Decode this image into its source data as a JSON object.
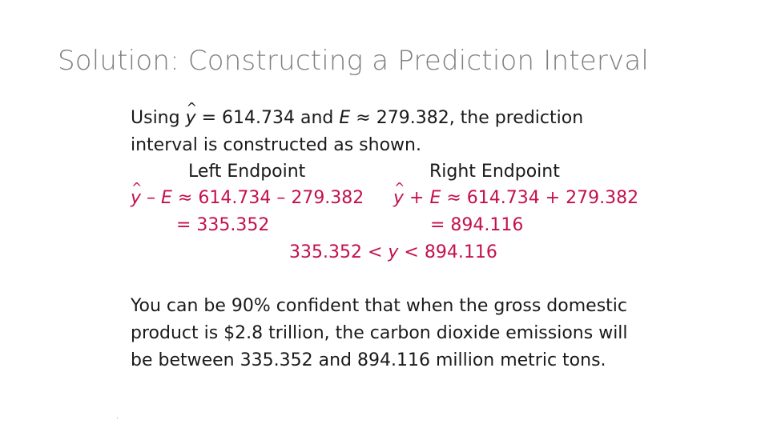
{
  "title": "Solution: Constructing a Prediction Interval",
  "intro": {
    "prefix": "Using ",
    "yhat": "y",
    "mid1": " = 614.734  and ",
    "e_var": "E",
    "mid2": " ≈ 279.382, the prediction",
    "line2": "interval is constructed as shown."
  },
  "headers": {
    "left": "Left Endpoint",
    "right": "Right Endpoint"
  },
  "left_endpoint": {
    "yhat": "y",
    "op": " – ",
    "e_var": "E",
    "expr": " ≈ 614.734 – 279.382",
    "result": "= 335.352"
  },
  "right_endpoint": {
    "yhat": "y",
    "op": " + ",
    "e_var": "E",
    "expr": " ≈ 614.734 + 279.382",
    "result": "= 894.116"
  },
  "interval": {
    "left": "335.352 < ",
    "var": "y",
    "right": " < 894.116"
  },
  "conclusion": [
    "You can be 90% confident that when the gross domestic",
    "product is $2.8 trillion, the carbon dioxide emissions will",
    "be between 335.352 and 894.116 million metric tons."
  ]
}
